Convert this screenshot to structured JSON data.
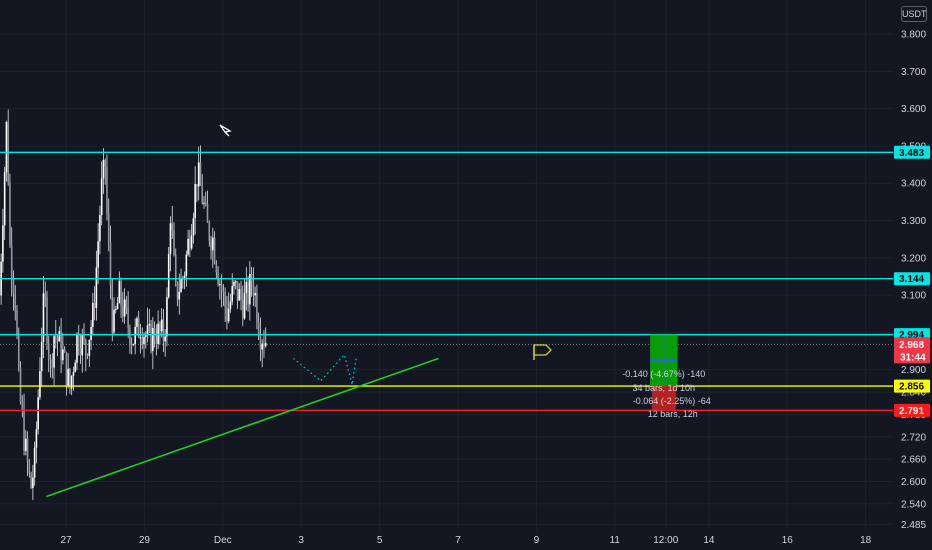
{
  "currency_label": "USDT",
  "chart_data": {
    "type": "candlestick",
    "price_axis": {
      "range": [
        2.47,
        3.87
      ],
      "ticks": [
        3.8,
        3.7,
        3.6,
        3.5,
        3.4,
        3.3,
        3.2,
        3.1,
        3.0,
        2.9,
        2.84,
        2.78,
        2.72,
        2.66,
        2.6,
        2.54,
        2.485
      ]
    },
    "time_axis": {
      "ticks": [
        {
          "label": "27",
          "index": 0
        },
        {
          "label": "29",
          "index": 2
        },
        {
          "label": "Dec",
          "index": 4
        },
        {
          "label": "3",
          "index": 6
        },
        {
          "label": "5",
          "index": 8
        },
        {
          "label": "7",
          "index": 10
        },
        {
          "label": "9",
          "index": 12
        },
        {
          "label": "11",
          "index": 14
        },
        {
          "label": "12:00",
          "index": 15.3
        },
        {
          "label": "14",
          "index": 16.4
        },
        {
          "label": "16",
          "index": 18.4
        },
        {
          "label": "18",
          "index": 20.4
        }
      ]
    },
    "series": {
      "color": "#e0e3eb",
      "close_path": [
        [
          -1.7,
          3.1
        ],
        [
          -1.6,
          3.35
        ],
        [
          -1.5,
          3.6
        ],
        [
          -1.45,
          3.25
        ],
        [
          -1.3,
          3.1
        ],
        [
          -1.2,
          2.85
        ],
        [
          -1.05,
          2.7
        ],
        [
          -0.9,
          2.58
        ],
        [
          -0.8,
          2.65
        ],
        [
          -0.65,
          2.95
        ],
        [
          -0.55,
          3.1
        ],
        [
          -0.4,
          2.9
        ],
        [
          -0.3,
          3.0
        ],
        [
          -0.1,
          2.95
        ],
        [
          0.1,
          2.85
        ],
        [
          0.3,
          3.0
        ],
        [
          0.5,
          2.95
        ],
        [
          0.7,
          3.05
        ],
        [
          0.9,
          3.38
        ],
        [
          1.0,
          3.45
        ],
        [
          1.05,
          3.3
        ],
        [
          1.2,
          3.0
        ],
        [
          1.35,
          3.1
        ],
        [
          1.5,
          3.05
        ],
        [
          1.7,
          2.98
        ],
        [
          1.9,
          3.02
        ],
        [
          2.1,
          2.98
        ],
        [
          2.3,
          3.0
        ],
        [
          2.5,
          2.99
        ],
        [
          2.6,
          3.1
        ],
        [
          2.65,
          3.35
        ],
        [
          2.8,
          3.1
        ],
        [
          3.0,
          3.15
        ],
        [
          3.2,
          3.3
        ],
        [
          3.35,
          3.43
        ],
        [
          3.5,
          3.35
        ],
        [
          3.6,
          3.28
        ],
        [
          3.75,
          3.25
        ],
        [
          3.9,
          3.15
        ],
        [
          4.1,
          3.05
        ],
        [
          4.3,
          3.12
        ],
        [
          4.5,
          3.08
        ],
        [
          4.65,
          3.1
        ],
        [
          4.75,
          3.15
        ],
        [
          4.85,
          3.08
        ],
        [
          4.95,
          3.0
        ],
        [
          5.1,
          2.98
        ]
      ]
    },
    "last_price": 2.968,
    "countdown": "31:44",
    "horizontal_levels": [
      {
        "value": 3.483,
        "label": "3.483",
        "color": "#00e5e5"
      },
      {
        "value": 3.144,
        "label": "3.144",
        "color": "#00e5e5"
      },
      {
        "value": 2.994,
        "label": "2.994",
        "color": "#00e5e5"
      },
      {
        "value": 2.856,
        "label": "2.856",
        "color": "#ffff00"
      },
      {
        "value": 2.791,
        "label": "2.791",
        "color": "#ff1a1a"
      }
    ],
    "trendline": {
      "color": "#22cc22",
      "points": [
        [
          -0.5,
          2.56
        ],
        [
          9.5,
          2.93
        ]
      ]
    },
    "position_box": {
      "x": [
        14.9,
        15.6
      ],
      "entry": 2.856,
      "target": 2.994,
      "stop": 2.791,
      "labels": [
        "-0.140 (-4.67%) -140",
        "34 bars, 1d 10h",
        "-0.064 (-2.25%) -64",
        "12 bars, 12h"
      ]
    }
  }
}
